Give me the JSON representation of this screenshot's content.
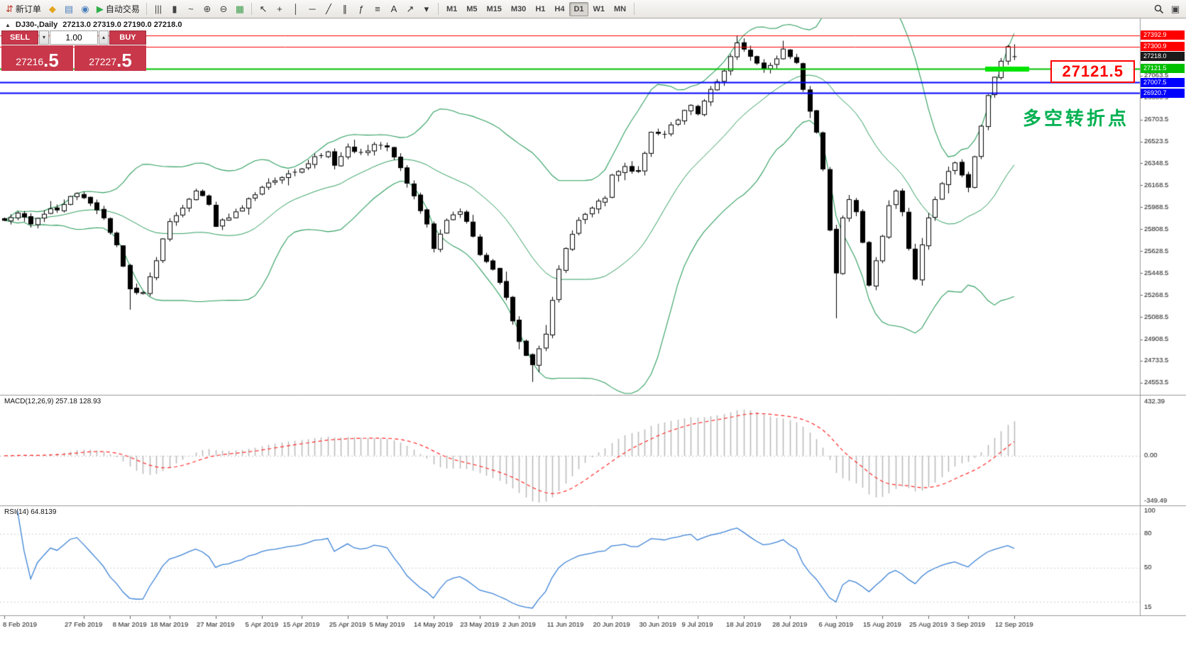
{
  "toolbar": {
    "groups": [
      {
        "items": [
          {
            "name": "new-order-button",
            "icon": "new-order-icon",
            "glyph": "⇵",
            "glyph_color": "#c0392b",
            "label": "新订单"
          },
          {
            "name": "profiles-button",
            "icon": "profiles-icon",
            "glyph": "◆",
            "glyph_color": "#e3a51f"
          },
          {
            "name": "market-watch-button",
            "icon": "market-watch-icon",
            "glyph": "▤",
            "glyph_color": "#4a7ebb"
          },
          {
            "name": "data-window-button",
            "icon": "data-window-icon",
            "glyph": "◉",
            "glyph_color": "#4a7ebb"
          },
          {
            "name": "autotrading-button",
            "icon": "play-icon",
            "glyph": "▶",
            "glyph_color": "#2fae4a",
            "label": "自动交易"
          }
        ]
      },
      {
        "items": [
          {
            "name": "bar-chart-button",
            "icon": "bar-chart-icon",
            "glyph": "|||",
            "glyph_color": "#444"
          },
          {
            "name": "candle-chart-button",
            "icon": "candle-chart-icon",
            "glyph": "▮",
            "glyph_color": "#444"
          },
          {
            "name": "line-chart-button",
            "icon": "line-chart-icon",
            "glyph": "~",
            "glyph_color": "#444"
          },
          {
            "name": "zoom-in-button",
            "icon": "zoom-in-icon",
            "glyph": "⊕",
            "glyph_color": "#444"
          },
          {
            "name": "zoom-out-button",
            "icon": "zoom-out-icon",
            "glyph": "⊖",
            "glyph_color": "#444"
          },
          {
            "name": "tile-windows-button",
            "icon": "tile-windows-icon",
            "glyph": "▦",
            "glyph_color": "#3f9e4d"
          }
        ]
      },
      {
        "items": [
          {
            "name": "cursor-button",
            "icon": "cursor-icon",
            "glyph": "↖",
            "glyph_color": "#333"
          },
          {
            "name": "crosshair-button",
            "icon": "crosshair-icon",
            "glyph": "+",
            "glyph_color": "#333"
          },
          {
            "name": "vertical-line-button",
            "icon": "vertical-line-icon",
            "glyph": "│",
            "glyph_color": "#333"
          },
          {
            "name": "horizontal-line-button",
            "icon": "horizontal-line-icon",
            "glyph": "─",
            "glyph_color": "#333"
          },
          {
            "name": "trendline-button",
            "icon": "trendline-icon",
            "glyph": "╱",
            "glyph_color": "#333"
          },
          {
            "name": "channel-button",
            "icon": "channel-icon",
            "glyph": "∥",
            "glyph_color": "#333"
          },
          {
            "name": "fibonacci-button",
            "icon": "fibonacci-icon",
            "glyph": "ƒ",
            "glyph_color": "#333"
          },
          {
            "name": "shapes-button",
            "icon": "shapes-icon",
            "glyph": "≡",
            "glyph_color": "#333"
          },
          {
            "name": "text-tool-button",
            "icon": "text-tool-icon",
            "glyph": "A",
            "glyph_color": "#333"
          },
          {
            "name": "arrows-tool-button",
            "icon": "arrows-tool-icon",
            "glyph": "↗",
            "glyph_color": "#333"
          },
          {
            "name": "objects-more-button",
            "icon": "chevron-down-icon",
            "glyph": "▾",
            "glyph_color": "#333"
          }
        ]
      }
    ],
    "timeframes": [
      {
        "label": "M1"
      },
      {
        "label": "M5"
      },
      {
        "label": "M15"
      },
      {
        "label": "M30"
      },
      {
        "label": "H1"
      },
      {
        "label": "H4"
      },
      {
        "label": "D1",
        "active": true
      },
      {
        "label": "W1"
      },
      {
        "label": "MN"
      }
    ],
    "right_items": [
      {
        "name": "search-button",
        "icon": "magnifier-icon",
        "svg": "magnifier"
      },
      {
        "name": "chart-layout-button",
        "icon": "layout-icon",
        "glyph": "▣",
        "glyph_color": "#444"
      }
    ]
  },
  "chart": {
    "symbol_line": {
      "toggle": "▲",
      "symbol": "DJ30-,Daily",
      "ohlc": "27213.0 27319.0 27190.0 27218.0"
    },
    "trade_panel": {
      "sell_label": "SELL",
      "buy_label": "BUY",
      "volume": "1.00",
      "spin_down": "▾",
      "spin_up": "▴",
      "sell_price": {
        "main": "27216",
        "big": ".5"
      },
      "buy_price": {
        "main": "27227",
        "big": ".5"
      },
      "panel_color": "#c8374a"
    },
    "hlines": [
      {
        "price": 27392.9,
        "label": "27392.9",
        "color": "#ff0000",
        "width": 1
      },
      {
        "price": 27300.9,
        "label": "27300.9",
        "color": "#ff0000",
        "width": 1
      },
      {
        "price": 27121.5,
        "label": "27121.5",
        "color": "#00c000",
        "width": 2,
        "highlight_segment": true,
        "segment_color": "#00e400"
      },
      {
        "price": 27007.5,
        "label": "27007.5",
        "color": "#0000ff",
        "width": 2
      },
      {
        "price": 26920.7,
        "label": "26920.7",
        "color": "#0000ff",
        "width": 2
      }
    ],
    "current_price_tag": {
      "price": 27218.0,
      "label": "27218.0",
      "bg": "#1a1a1a"
    },
    "annotations": {
      "price_box": {
        "text": "27121.5",
        "color": "#ff0000"
      },
      "note": {
        "text": "多空转折点",
        "color": "#00b050"
      }
    }
  },
  "chart_data": {
    "type": "candlestick",
    "symbol": "DJ30-",
    "timeframe": "Daily",
    "last_ohlc": {
      "open": 27213.0,
      "high": 27319.0,
      "low": 27190.0,
      "close": 27218.0
    },
    "ylim": [
      24460,
      27530
    ],
    "candle_count": 154,
    "seed": 9,
    "candle_colors": {
      "up_fill": "#ffffff",
      "down_fill": "#000000",
      "outline": "#000000"
    },
    "close_waypoints": [
      [
        0,
        25880
      ],
      [
        2,
        25940
      ],
      [
        4,
        25850
      ],
      [
        6,
        25930
      ],
      [
        9,
        26010
      ],
      [
        11,
        26100
      ],
      [
        13,
        26020
      ],
      [
        15,
        25900
      ],
      [
        17,
        25680
      ],
      [
        19,
        25320
      ],
      [
        21,
        25290
      ],
      [
        23,
        25550
      ],
      [
        25,
        25870
      ],
      [
        27,
        25980
      ],
      [
        29,
        26120
      ],
      [
        31,
        26010
      ],
      [
        32,
        25830
      ],
      [
        34,
        25900
      ],
      [
        36,
        25980
      ],
      [
        39,
        26150
      ],
      [
        42,
        26230
      ],
      [
        45,
        26300
      ],
      [
        47,
        26400
      ],
      [
        49,
        26440
      ],
      [
        50,
        26330
      ],
      [
        52,
        26480
      ],
      [
        54,
        26430
      ],
      [
        56,
        26500
      ],
      [
        58,
        26480
      ],
      [
        60,
        26310
      ],
      [
        62,
        26080
      ],
      [
        64,
        25850
      ],
      [
        65,
        25650
      ],
      [
        67,
        25880
      ],
      [
        69,
        25950
      ],
      [
        71,
        25750
      ],
      [
        72,
        25600
      ],
      [
        74,
        25480
      ],
      [
        76,
        25250
      ],
      [
        78,
        24890
      ],
      [
        80,
        24700
      ],
      [
        82,
        24950
      ],
      [
        84,
        25480
      ],
      [
        85,
        25650
      ],
      [
        87,
        25880
      ],
      [
        89,
        25980
      ],
      [
        91,
        26060
      ],
      [
        92,
        26250
      ],
      [
        94,
        26320
      ],
      [
        96,
        26280
      ],
      [
        98,
        26600
      ],
      [
        100,
        26580
      ],
      [
        102,
        26700
      ],
      [
        104,
        26820
      ],
      [
        105,
        26750
      ],
      [
        107,
        26950
      ],
      [
        109,
        27100
      ],
      [
        111,
        27330
      ],
      [
        113,
        27220
      ],
      [
        115,
        27120
      ],
      [
        117,
        27200
      ],
      [
        118,
        27280
      ],
      [
        120,
        27170
      ],
      [
        121,
        26950
      ],
      [
        123,
        26600
      ],
      [
        124,
        26300
      ],
      [
        125,
        25800
      ],
      [
        126,
        25450
      ],
      [
        127,
        25900
      ],
      [
        128,
        26050
      ],
      [
        129,
        25950
      ],
      [
        130,
        25700
      ],
      [
        131,
        25350
      ],
      [
        132,
        25550
      ],
      [
        133,
        25750
      ],
      [
        134,
        26000
      ],
      [
        135,
        26120
      ],
      [
        136,
        25950
      ],
      [
        137,
        25650
      ],
      [
        138,
        25400
      ],
      [
        139,
        25680
      ],
      [
        140,
        25900
      ],
      [
        141,
        26050
      ],
      [
        142,
        26180
      ],
      [
        143,
        26280
      ],
      [
        144,
        26350
      ],
      [
        145,
        26250
      ],
      [
        146,
        26150
      ],
      [
        147,
        26400
      ],
      [
        148,
        26650
      ],
      [
        149,
        26900
      ],
      [
        150,
        27050
      ],
      [
        151,
        27180
      ],
      [
        152,
        27300
      ],
      [
        153,
        27218
      ]
    ],
    "wick_overrides": {
      "highs": [
        [
          111,
          27392
        ]
      ],
      "lows": [
        [
          19,
          25150
        ],
        [
          80,
          24560
        ],
        [
          126,
          25080
        ]
      ]
    },
    "overlays": {
      "bollinger": {
        "period": 20,
        "deviation": 2,
        "color": "#2e9e5e"
      }
    },
    "y_axis": {
      "ticks": [
        "27063.5",
        "26883.5",
        "26703.5",
        "26523.5",
        "26348.5",
        "26168.5",
        "25988.5",
        "25808.5",
        "25628.5",
        "25448.5",
        "25268.5",
        "25088.5",
        "24908.5",
        "24733.5",
        "24553.5"
      ]
    },
    "x_axis": {
      "labels": [
        [
          0,
          "8 Feb 2019"
        ],
        [
          12,
          "27 Feb 2019"
        ],
        [
          19,
          "8 Mar 2019"
        ],
        [
          25,
          "18 Mar 2019"
        ],
        [
          32,
          "27 Mar 2019"
        ],
        [
          39,
          "5 Apr 2019"
        ],
        [
          45,
          "15 Apr 2019"
        ],
        [
          52,
          "25 Apr 2019"
        ],
        [
          58,
          "5 May 2019"
        ],
        [
          65,
          "14 May 2019"
        ],
        [
          72,
          "23 May 2019"
        ],
        [
          78,
          "2 Jun 2019"
        ],
        [
          85,
          "11 Jun 2019"
        ],
        [
          92,
          "20 Jun 2019"
        ],
        [
          99,
          "30 Jun 2019"
        ],
        [
          105,
          "9 Jul 2019"
        ],
        [
          112,
          "18 Jul 2019"
        ],
        [
          119,
          "28 Jul 2019"
        ],
        [
          126,
          "6 Aug 2019"
        ],
        [
          133,
          "15 Aug 2019"
        ],
        [
          140,
          "25 Aug 2019"
        ],
        [
          146,
          "3 Sep 2019"
        ],
        [
          153,
          "12 Sep 2019"
        ]
      ]
    },
    "indicators": [
      {
        "type": "macd",
        "full_label": "MACD(12,26,9) 257.18 128.93",
        "params": [
          12,
          26,
          9
        ],
        "axis_ticks": [
          "432.39",
          "0.00",
          "-349.49"
        ],
        "axis_values": [
          432.39,
          0,
          -349.49
        ],
        "range": [
          -365,
          448
        ],
        "histogram_color": "#b8b8b8",
        "signal_color": "#ff2a2a"
      },
      {
        "type": "rsi",
        "full_label": "RSI(14) 64.8139",
        "period": 14,
        "axis_ticks": [
          "100",
          "80",
          "50",
          "15"
        ],
        "axis_values": [
          100,
          80,
          50,
          15
        ],
        "levels": [
          80,
          50,
          20
        ],
        "range": [
          8,
          104
        ],
        "line_color": "#3c82d6"
      }
    ]
  }
}
